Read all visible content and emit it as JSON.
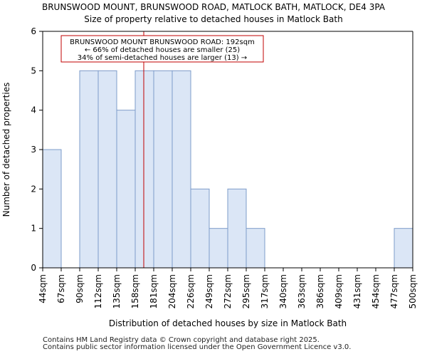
{
  "chart_data": {
    "type": "bar",
    "title": "BRUNSWOOD MOUNT, BRUNSWOOD ROAD, MATLOCK BATH, MATLOCK, DE4 3PA",
    "subtitle": "Size of property relative to detached houses in Matlock Bath",
    "xlabel": "Distribution of detached houses by size in Matlock Bath",
    "ylabel": "Number of detached properties",
    "tick_labels": [
      "44sqm",
      "67sqm",
      "90sqm",
      "112sqm",
      "135sqm",
      "158sqm",
      "181sqm",
      "204sqm",
      "226sqm",
      "249sqm",
      "272sqm",
      "295sqm",
      "317sqm",
      "340sqm",
      "363sqm",
      "386sqm",
      "409sqm",
      "431sqm",
      "454sqm",
      "477sqm",
      "500sqm"
    ],
    "values": [
      3,
      0,
      5,
      5,
      4,
      5,
      5,
      5,
      2,
      1,
      2,
      1,
      0,
      0,
      0,
      0,
      0,
      0,
      0,
      1
    ],
    "ylim": [
      0,
      6
    ],
    "yticks": [
      0,
      1,
      2,
      3,
      4,
      5,
      6
    ],
    "property_marker": {
      "value_sqm": 192,
      "position_bins": 5.5
    },
    "annotation": {
      "line1": "BRUNSWOOD MOUNT BRUNSWOOD ROAD: 192sqm",
      "line2": "← 66% of detached houses are smaller (25)",
      "line3": "34% of semi-detached houses are larger (13) →"
    },
    "colors": {
      "bar_fill": "#dbe6f6",
      "bar_edge": "#7e9cc9",
      "marker": "#c00000",
      "axis": "#000000"
    }
  },
  "footer": {
    "line1": "Contains HM Land Registry data © Crown copyright and database right 2025.",
    "line2": "Contains public sector information licensed under the Open Government Licence v3.0."
  }
}
